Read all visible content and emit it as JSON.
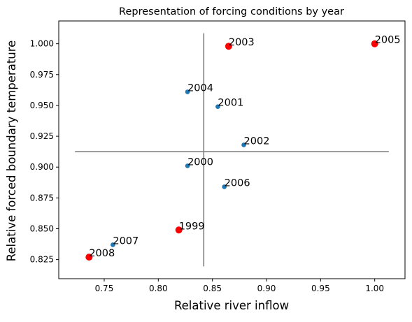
{
  "chart_data": {
    "type": "scatter",
    "title": "Representation of forcing conditions by year",
    "xlabel": "Relative river inflow",
    "ylabel": "Relative forced boundary temperature",
    "xlim": [
      0.708,
      1.028
    ],
    "ylim": [
      0.8095,
      1.0185
    ],
    "x_ticks": [
      0.75,
      0.8,
      0.85,
      0.9,
      0.95,
      1.0
    ],
    "x_tick_labels": [
      "0.75",
      "0.80",
      "0.85",
      "0.90",
      "0.95",
      "1.00"
    ],
    "y_ticks": [
      0.825,
      0.85,
      0.875,
      0.9,
      0.925,
      0.95,
      0.975,
      1.0
    ],
    "y_tick_labels": [
      "0.825",
      "0.850",
      "0.875",
      "0.900",
      "0.925",
      "0.950",
      "0.975",
      "1.000"
    ],
    "grid": false,
    "colors": {
      "normal_point": "#1f77b4",
      "highlight_point": "#ff0000",
      "reference_line": "#808080"
    },
    "points": [
      {
        "label": "2005",
        "x": 1.0,
        "y": 1.0,
        "highlight": true
      },
      {
        "label": "2003",
        "x": 0.865,
        "y": 0.998,
        "highlight": true
      },
      {
        "label": "2004",
        "x": 0.827,
        "y": 0.961,
        "highlight": false
      },
      {
        "label": "2001",
        "x": 0.855,
        "y": 0.949,
        "highlight": false
      },
      {
        "label": "2002",
        "x": 0.879,
        "y": 0.918,
        "highlight": false
      },
      {
        "label": "2000",
        "x": 0.827,
        "y": 0.901,
        "highlight": false
      },
      {
        "label": "2006",
        "x": 0.861,
        "y": 0.884,
        "highlight": false
      },
      {
        "label": "1999",
        "x": 0.819,
        "y": 0.849,
        "highlight": true
      },
      {
        "label": "2007",
        "x": 0.758,
        "y": 0.837,
        "highlight": false
      },
      {
        "label": "2008",
        "x": 0.736,
        "y": 0.827,
        "highlight": true
      }
    ],
    "reference_lines": {
      "vertical": {
        "x": 0.842,
        "y_from": 0.8195,
        "y_to": 1.0085
      },
      "horizontal": {
        "y": 0.9125,
        "x_from": 0.723,
        "x_to": 1.013
      }
    }
  }
}
